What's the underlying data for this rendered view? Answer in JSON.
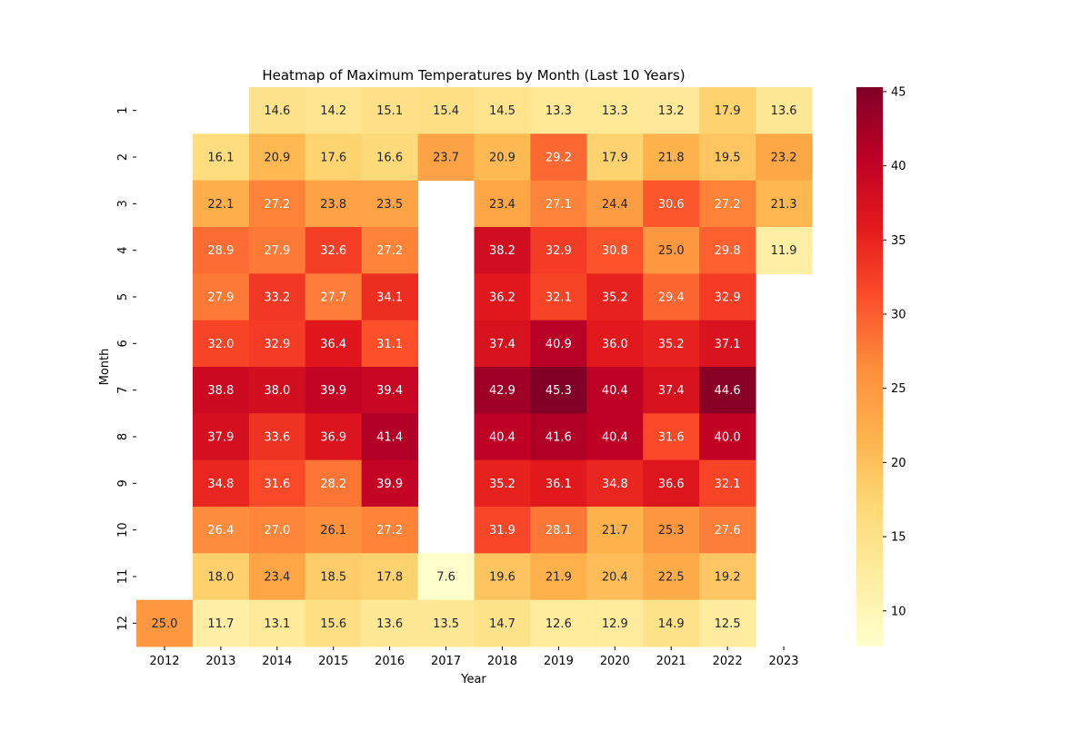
{
  "chart_data": {
    "type": "heatmap",
    "title": "Heatmap of Maximum Temperatures by Month (Last 10 Years)",
    "xlabel": "Year",
    "ylabel": "Month",
    "x_categories": [
      "2012",
      "2013",
      "2014",
      "2015",
      "2016",
      "2017",
      "2018",
      "2019",
      "2020",
      "2021",
      "2022",
      "2023"
    ],
    "y_categories": [
      "1",
      "2",
      "3",
      "4",
      "5",
      "6",
      "7",
      "8",
      "9",
      "10",
      "11",
      "12"
    ],
    "colormap": "YlOrRd",
    "colormap_stops": [
      "#ffffcc",
      "#ffeda0",
      "#fed976",
      "#feb24c",
      "#fd8d3c",
      "#fc4e2a",
      "#e31a1c",
      "#bd0026",
      "#800026"
    ],
    "vmin": 7.6,
    "vmax": 45.3,
    "colorbar_ticks": [
      10,
      15,
      20,
      25,
      30,
      35,
      40,
      45
    ],
    "values": [
      [
        null,
        null,
        14.6,
        14.2,
        15.1,
        15.4,
        14.5,
        13.3,
        13.3,
        13.2,
        17.9,
        13.6
      ],
      [
        null,
        16.1,
        20.9,
        17.6,
        16.6,
        23.7,
        20.9,
        29.2,
        17.9,
        21.8,
        19.5,
        23.2
      ],
      [
        null,
        22.1,
        27.2,
        23.8,
        23.5,
        null,
        23.4,
        27.1,
        24.4,
        30.6,
        27.2,
        21.3
      ],
      [
        null,
        28.9,
        27.9,
        32.6,
        27.2,
        null,
        38.2,
        32.9,
        30.8,
        25.0,
        29.8,
        11.9
      ],
      [
        null,
        27.9,
        33.2,
        27.7,
        34.1,
        null,
        36.2,
        32.1,
        35.2,
        29.4,
        32.9,
        null
      ],
      [
        null,
        32.0,
        32.9,
        36.4,
        31.1,
        null,
        37.4,
        40.9,
        36.0,
        35.2,
        37.1,
        null
      ],
      [
        null,
        38.8,
        38.0,
        39.9,
        39.4,
        null,
        42.9,
        45.3,
        40.4,
        37.4,
        44.6,
        null
      ],
      [
        null,
        37.9,
        33.6,
        36.9,
        41.4,
        null,
        40.4,
        41.6,
        40.4,
        31.6,
        40.0,
        null
      ],
      [
        null,
        34.8,
        31.6,
        28.2,
        39.9,
        null,
        35.2,
        36.1,
        34.8,
        36.6,
        32.1,
        null
      ],
      [
        null,
        26.4,
        27.0,
        26.1,
        27.2,
        null,
        31.9,
        28.1,
        21.7,
        25.3,
        27.6,
        null
      ],
      [
        null,
        18.0,
        23.4,
        18.5,
        17.8,
        7.6,
        19.6,
        21.9,
        20.4,
        22.5,
        19.2,
        null
      ],
      [
        25.0,
        11.7,
        13.1,
        15.6,
        13.6,
        13.5,
        14.7,
        12.6,
        12.9,
        14.9,
        12.5,
        null
      ]
    ]
  }
}
